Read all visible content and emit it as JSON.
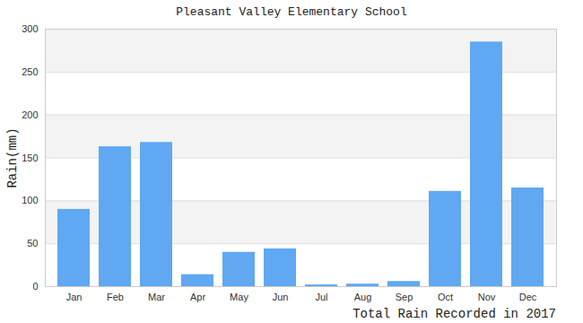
{
  "chart_data": {
    "type": "bar",
    "title": "Pleasant Valley Elementary School",
    "x_label": "Total Rain Recorded in 2017",
    "y_label": "Rain(mm)",
    "categories": [
      "Jan",
      "Feb",
      "Mar",
      "Apr",
      "May",
      "Jun",
      "Jul",
      "Aug",
      "Sep",
      "Oct",
      "Nov",
      "Dec"
    ],
    "values": [
      90,
      163,
      168,
      14,
      40,
      44,
      2,
      3,
      6,
      111,
      285,
      115
    ],
    "color": "#60a8f2",
    "ylim": [
      0,
      300
    ],
    "yticks": [
      0,
      50,
      100,
      150,
      200,
      250,
      300
    ],
    "grid": true
  }
}
